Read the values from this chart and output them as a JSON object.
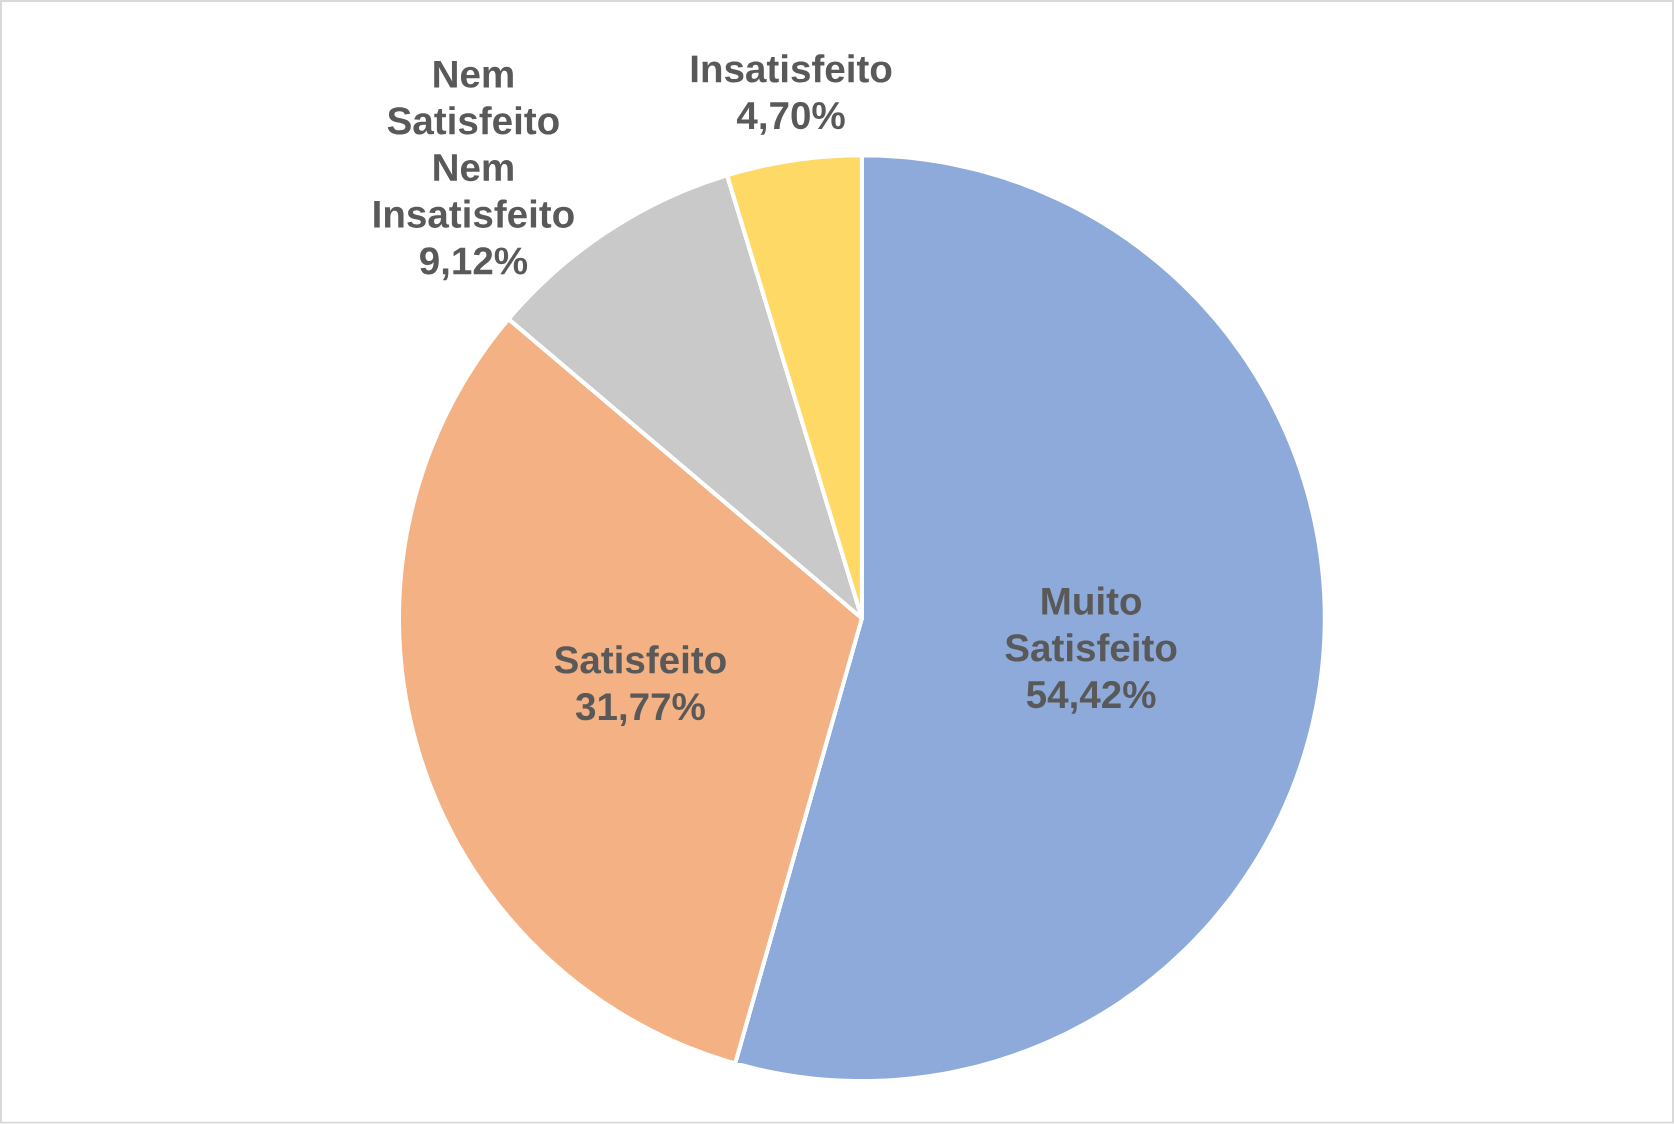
{
  "chart_data": {
    "type": "pie",
    "categories": [
      "Muito Satisfeito",
      "Satisfeito",
      "Nem Satisfeito Nem Insatisfeito",
      "Insatisfeito"
    ],
    "values": [
      54.42,
      31.77,
      9.12,
      4.7
    ],
    "value_labels": [
      "54,42%",
      "31,77%",
      "9,12%",
      "4,70%"
    ],
    "colors": [
      "#8eaadb",
      "#f4b183",
      "#c9c9c9",
      "#ffd966"
    ]
  }
}
